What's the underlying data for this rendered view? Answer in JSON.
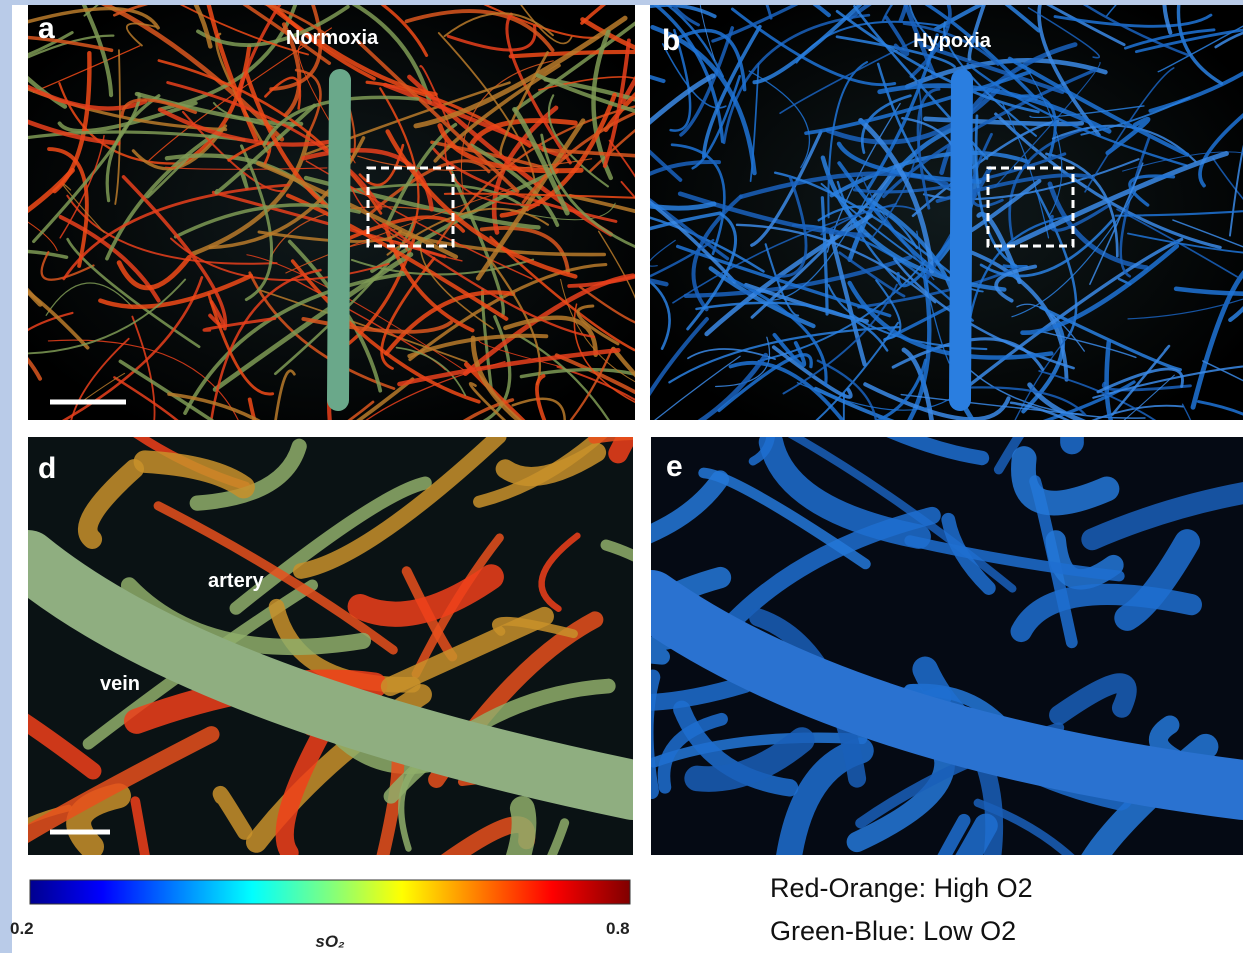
{
  "panels": [
    {
      "letter": "a",
      "title": "Normoxia"
    },
    {
      "letter": "b",
      "title": "Hypoxia"
    },
    {
      "letter": "d",
      "labels": [
        "artery",
        "vein"
      ]
    },
    {
      "letter": "e"
    }
  ],
  "colorbar": {
    "min": 0.2,
    "max": 0.8,
    "label": "sO₂"
  },
  "legend": [
    "Red-Orange: High O2",
    "Green-Blue: Low O2"
  ]
}
